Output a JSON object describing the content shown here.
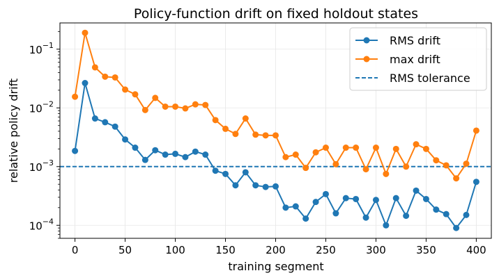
{
  "chart_data": {
    "type": "line",
    "title": "Policy-function drift on fixed holdout states",
    "xlabel": "training segment",
    "ylabel": "relative policy drift",
    "xlim": [
      -15,
      415
    ],
    "ylim": [
      6e-05,
      0.28
    ],
    "yscale": "log",
    "grid": true,
    "legend_position": "top-right",
    "x_ticks": [
      0,
      50,
      100,
      150,
      200,
      250,
      300,
      350,
      400
    ],
    "x_tick_labels": [
      "0",
      "50",
      "100",
      "150",
      "200",
      "250",
      "300",
      "350",
      "400"
    ],
    "y_ticks": [
      0.0001,
      0.001,
      0.01,
      0.1
    ],
    "y_tick_labels": [
      {
        "base": "10",
        "exp": "−4"
      },
      {
        "base": "10",
        "exp": "−3"
      },
      {
        "base": "10",
        "exp": "−2"
      },
      {
        "base": "10",
        "exp": "−1"
      }
    ],
    "x": [
      0,
      10,
      20,
      30,
      40,
      50,
      60,
      70,
      80,
      90,
      100,
      110,
      120,
      130,
      140,
      150,
      160,
      170,
      180,
      190,
      200,
      210,
      220,
      230,
      240,
      250,
      260,
      270,
      280,
      290,
      300,
      310,
      320,
      330,
      340,
      350,
      360,
      370,
      380,
      390,
      400
    ],
    "series": [
      {
        "name": "RMS drift",
        "color": "#1f77b4",
        "style": "solid-marker",
        "values": [
          0.00185,
          0.0265,
          0.0066,
          0.0057,
          0.0048,
          0.0029,
          0.0021,
          0.0013,
          0.0019,
          0.0016,
          0.00165,
          0.00145,
          0.0018,
          0.0016,
          0.00085,
          0.00075,
          0.00048,
          0.0008,
          0.00048,
          0.00045,
          0.00046,
          0.0002,
          0.00021,
          0.00013,
          0.00025,
          0.00034,
          0.00016,
          0.00029,
          0.00028,
          0.000135,
          0.00027,
          0.0001,
          0.00029,
          0.000145,
          0.00039,
          0.00028,
          0.000185,
          0.000155,
          9e-05,
          0.00015,
          0.00055
        ]
      },
      {
        "name": "max drift",
        "color": "#ff7f0e",
        "style": "solid-marker",
        "values": [
          0.0155,
          0.19,
          0.049,
          0.034,
          0.033,
          0.0205,
          0.017,
          0.0092,
          0.0148,
          0.0105,
          0.0105,
          0.0098,
          0.0115,
          0.0112,
          0.0062,
          0.0044,
          0.0036,
          0.0066,
          0.0035,
          0.0034,
          0.0034,
          0.00145,
          0.0016,
          0.00095,
          0.00175,
          0.0021,
          0.0011,
          0.0021,
          0.0021,
          0.0009,
          0.0021,
          0.00075,
          0.002,
          0.001,
          0.0024,
          0.002,
          0.00128,
          0.00105,
          0.00063,
          0.00112,
          0.0041
        ]
      }
    ],
    "reference_lines": [
      {
        "name": "RMS tolerance",
        "y": 0.001,
        "color": "#1f77b4",
        "style": "dashed"
      }
    ],
    "legend": [
      "RMS drift",
      "max drift",
      "RMS tolerance"
    ]
  }
}
